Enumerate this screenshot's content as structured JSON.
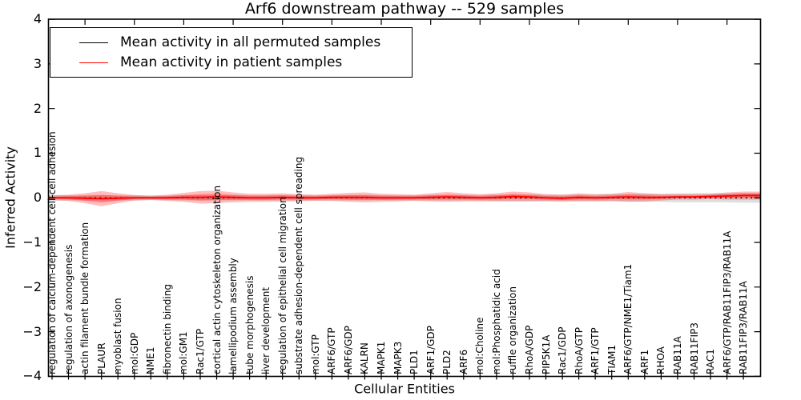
{
  "figure": {
    "title": "Arf6 downstream pathway -- 529 samples",
    "xlabel": "Cellular Entities",
    "ylabel": "Inferred Activity"
  },
  "legend": {
    "position": "upper left",
    "items": [
      {
        "label": "Mean activity in all permuted samples",
        "color": "#000000"
      },
      {
        "label": "Mean activity in patient samples",
        "color": "#ff0000"
      }
    ]
  },
  "chart_data": {
    "type": "line",
    "title": "Arf6 downstream pathway -- 529 samples",
    "xlabel": "Cellular Entities",
    "ylabel": "Inferred Activity",
    "ylim": [
      -4,
      4
    ],
    "yticks": [
      -4,
      -3,
      -2,
      -1,
      0,
      1,
      2,
      3,
      4
    ],
    "grid": false,
    "legend_position": "upper left",
    "categories": [
      "regulation of calcium-dependent cell-cell adhesion",
      "regulation of axonogenesis",
      "actin filament bundle formation",
      "PLAUR",
      "myoblast fusion",
      "mol:GDP",
      "NME1",
      "fibronectin binding",
      "mol:GM1",
      "Rac1/GTP",
      "cortical actin cytoskeleton organization",
      "lamellipodium assembly",
      "tube morphogenesis",
      "liver development",
      "regulation of epithelial cell migration",
      "substrate adhesion-dependent cell spreading",
      "mol:GTP",
      "ARF6/GTP",
      "ARF6/GDP",
      "KALRN",
      "MAPK1",
      "MAPK3",
      "PLD1",
      "ARF1/GDP",
      "PLD2",
      "ARF6",
      "mol:Choline",
      "mol:Phosphatidic acid",
      "ruffle organization",
      "RhoA/GDP",
      "PIP5K1A",
      "Rac1/GDP",
      "RhoA/GTP",
      "ARF1/GTP",
      "TIAM1",
      "ARF6/GTP/NME1/Tiam1",
      "ARF1",
      "RHOA",
      "RAB11A",
      "RAB11FIP3",
      "RAC1",
      "ARF6/GTP/RAB11FIP3/RAB11A",
      "RAB11FIP3/RAB11A"
    ],
    "series": [
      {
        "name": "Mean activity in all permuted samples",
        "color": "#000000",
        "style": "dotted",
        "values": [
          0,
          0,
          0,
          0,
          0,
          0,
          0,
          0,
          0,
          0,
          0,
          0,
          0,
          0,
          0,
          0,
          0,
          0,
          0,
          0,
          0,
          0,
          0,
          0,
          0,
          0,
          0,
          0,
          0,
          0,
          0,
          0,
          0,
          0,
          0,
          0,
          0,
          0,
          0,
          0,
          0,
          0,
          0
        ],
        "band_halfwidth": [
          0.07,
          0.06,
          0.06,
          0.06,
          0.06,
          0.06,
          0.05,
          0.05,
          0.06,
          0.06,
          0.06,
          0.06,
          0.06,
          0.06,
          0.06,
          0.06,
          0.06,
          0.06,
          0.06,
          0.06,
          0.06,
          0.06,
          0.06,
          0.06,
          0.06,
          0.06,
          0.06,
          0.07,
          0.07,
          0.07,
          0.07,
          0.07,
          0.07,
          0.07,
          0.08,
          0.08,
          0.09,
          0.09,
          0.1,
          0.1,
          0.1,
          0.1,
          0.11
        ],
        "band_color": "#999999"
      },
      {
        "name": "Mean activity in patient samples",
        "color": "#ff0000",
        "style": "solid",
        "values": [
          0,
          0,
          -0.01,
          -0.02,
          -0.01,
          0,
          0,
          0,
          0.01,
          0.01,
          0.02,
          0.01,
          0,
          0,
          0.01,
          0,
          0,
          0.01,
          0.01,
          0.01,
          0,
          0,
          0,
          0.01,
          0.02,
          0.01,
          0,
          0.01,
          0.03,
          0.02,
          0,
          -0.01,
          0.01,
          0,
          0.01,
          0.02,
          0.01,
          0.01,
          0.02,
          0.02,
          0.03,
          0.04,
          0.05
        ],
        "band_halfwidth": [
          0.05,
          0.07,
          0.11,
          0.17,
          0.11,
          0.06,
          0.05,
          0.07,
          0.1,
          0.14,
          0.14,
          0.11,
          0.09,
          0.09,
          0.09,
          0.08,
          0.07,
          0.08,
          0.1,
          0.11,
          0.09,
          0.08,
          0.07,
          0.09,
          0.11,
          0.09,
          0.08,
          0.09,
          0.11,
          0.1,
          0.08,
          0.08,
          0.09,
          0.08,
          0.08,
          0.11,
          0.09,
          0.07,
          0.06,
          0.06,
          0.06,
          0.08,
          0.09
        ],
        "band_color": "#ff0000"
      }
    ]
  }
}
